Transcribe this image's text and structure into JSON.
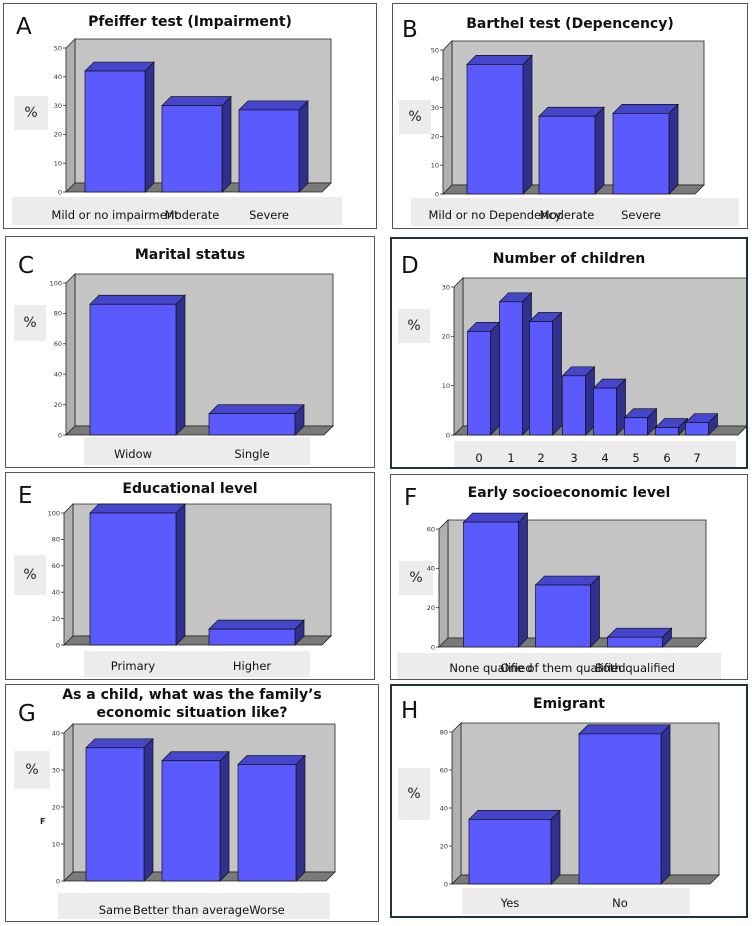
{
  "style": {
    "bar_front": "#5a5aff",
    "bar_top": "#4646cc",
    "bar_side": "#30308e",
    "wall": "#c4c4c4",
    "floor": "#7a7a7a",
    "border_light": "#555555",
    "border_dark": "#1e3340"
  },
  "chart_data": [
    {
      "id": "A",
      "letter": "A",
      "type": "bar",
      "title": "Pfeiffer test (Impairment)",
      "ylabel": "%",
      "categories": [
        "Mild or no impairment",
        "Moderate",
        "Severe"
      ],
      "values": [
        42,
        30,
        28.5
      ],
      "ylim": [
        0,
        50
      ],
      "yticks": [
        0,
        10,
        20,
        30,
        40,
        50
      ]
    },
    {
      "id": "B",
      "letter": "B",
      "type": "bar",
      "title": "Barthel test (Depencency)",
      "ylabel": "%",
      "categories": [
        "Mild or no Dependency",
        "Moderate",
        "Severe"
      ],
      "values": [
        45,
        27,
        28
      ],
      "ylim": [
        0,
        50
      ],
      "yticks": [
        0,
        10,
        20,
        30,
        40,
        50
      ]
    },
    {
      "id": "C",
      "letter": "C",
      "type": "bar",
      "title": "Marital status",
      "ylabel": "%",
      "categories": [
        "Widow",
        "Single"
      ],
      "values": [
        86,
        14
      ],
      "ylim": [
        0,
        100
      ],
      "yticks": [
        0,
        20,
        40,
        60,
        80,
        100
      ]
    },
    {
      "id": "D",
      "letter": "D",
      "type": "bar",
      "title": "Number of children",
      "ylabel": "%",
      "categories": [
        "0",
        "1",
        "2",
        "3",
        "4",
        "5",
        "6",
        "7"
      ],
      "values": [
        21,
        27,
        23,
        12,
        9.5,
        3.5,
        1.5,
        2.5
      ],
      "ylim": [
        0,
        30
      ],
      "yticks": [
        0,
        10,
        20,
        30
      ]
    },
    {
      "id": "E",
      "letter": "E",
      "type": "bar",
      "title": "Educational level",
      "ylabel": "%",
      "categories": [
        "Primary",
        "Higher"
      ],
      "values": [
        100,
        12
      ],
      "ylim": [
        0,
        100
      ],
      "yticks": [
        0,
        20,
        40,
        60,
        80,
        100
      ]
    },
    {
      "id": "F",
      "letter": "F",
      "type": "bar",
      "title": "Early socioeconomic level",
      "ylabel": "%",
      "categories": [
        "None qualified",
        "One of them qualified",
        "Both qualified"
      ],
      "values": [
        63.5,
        31.5,
        5
      ],
      "ylim": [
        0,
        60
      ],
      "yticks": [
        0,
        20,
        40,
        60
      ]
    },
    {
      "id": "G",
      "letter": "G",
      "type": "bar",
      "title_lines": [
        "As a child, what was the family’s",
        "economic situation like?"
      ],
      "ylabel": "%",
      "axis_side_label": "F",
      "categories": [
        "Same",
        "Better than average",
        "Worse"
      ],
      "values": [
        36,
        32.5,
        31.5
      ],
      "ylim": [
        0,
        40
      ],
      "yticks": [
        0,
        10,
        20,
        30,
        40
      ]
    },
    {
      "id": "H",
      "letter": "H",
      "type": "bar",
      "title": "Emigrant",
      "ylabel": "%",
      "categories": [
        "Yes",
        "No"
      ],
      "values": [
        34,
        79
      ],
      "ylim": [
        0,
        80
      ],
      "yticks": [
        0,
        20,
        40,
        60,
        80
      ]
    }
  ]
}
